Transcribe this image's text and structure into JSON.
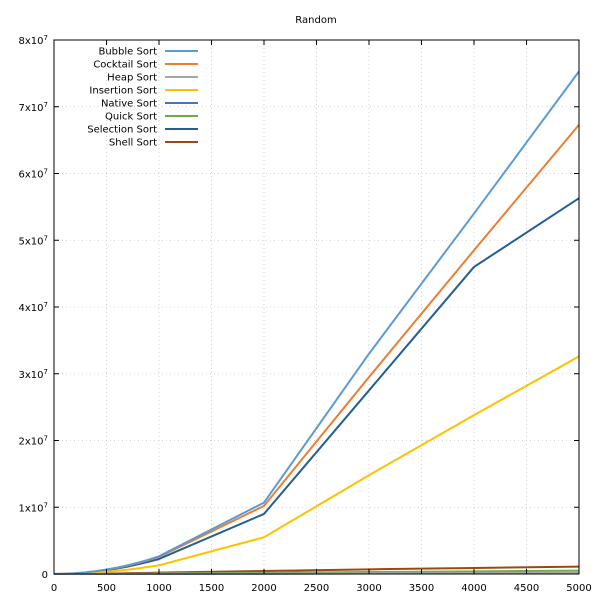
{
  "chart_data": {
    "type": "line",
    "title": "Random",
    "xlabel": "",
    "ylabel": "",
    "xlim": [
      0,
      5000
    ],
    "ylim": [
      0,
      80000000
    ],
    "grid": true,
    "legend_position": "top-left",
    "x": [
      0,
      100,
      200,
      300,
      400,
      500,
      600,
      700,
      800,
      900,
      1000,
      2000,
      3000,
      4000,
      5000
    ],
    "x_ticks": [
      0,
      500,
      1000,
      1500,
      2000,
      2500,
      3000,
      3500,
      4000,
      4500,
      5000
    ],
    "x_tick_labels": [
      "0",
      "500",
      "1000",
      "1500",
      "2000",
      "2500",
      "3000",
      "3500",
      "4000",
      "4500",
      "5000"
    ],
    "y_ticks": [
      0,
      10000000,
      20000000,
      30000000,
      40000000,
      50000000,
      60000000,
      70000000,
      80000000
    ],
    "y_tick_labels": [
      {
        "base": "0",
        "exp": ""
      },
      {
        "base": "1x10",
        "exp": "7"
      },
      {
        "base": "2x10",
        "exp": "7"
      },
      {
        "base": "3x10",
        "exp": "7"
      },
      {
        "base": "4x10",
        "exp": "7"
      },
      {
        "base": "5x10",
        "exp": "7"
      },
      {
        "base": "6x10",
        "exp": "7"
      },
      {
        "base": "7x10",
        "exp": "7"
      },
      {
        "base": "8x10",
        "exp": "7"
      }
    ],
    "series": [
      {
        "name": "Bubble Sort",
        "color": "#5b9bd5",
        "values": [
          0,
          30000,
          110000,
          250000,
          430000,
          670000,
          950000,
          1300000,
          1700000,
          2150000,
          2650000,
          10700000,
          33000000,
          54000000,
          75300000
        ]
      },
      {
        "name": "Cocktail Sort",
        "color": "#ed7d31",
        "values": [
          0,
          28000,
          105000,
          240000,
          410000,
          640000,
          920000,
          1250000,
          1640000,
          2070000,
          2550000,
          10200000,
          29500000,
          48500000,
          67300000
        ]
      },
      {
        "name": "Heap Sort",
        "color": "#a5a5a5",
        "values": [
          0,
          2000,
          5000,
          8000,
          11000,
          14000,
          17000,
          20000,
          24000,
          27000,
          30000,
          65000,
          100000,
          140000,
          180000
        ]
      },
      {
        "name": "Insertion Sort",
        "color": "#ffc000",
        "values": [
          0,
          15000,
          55000,
          120000,
          210000,
          330000,
          470000,
          640000,
          840000,
          1060000,
          1300000,
          5500000,
          14800000,
          23800000,
          32600000
        ]
      },
      {
        "name": "Native Sort",
        "color": "#4472c4",
        "values": [
          0,
          1000,
          3000,
          5000,
          7000,
          9000,
          11000,
          13000,
          15000,
          17000,
          20000,
          45000,
          70000,
          95000,
          120000
        ]
      },
      {
        "name": "Quick Sort",
        "color": "#70ad47",
        "values": [
          0,
          5000,
          12000,
          20000,
          28000,
          37000,
          46000,
          56000,
          66000,
          76000,
          86000,
          180000,
          290000,
          390000,
          500000
        ]
      },
      {
        "name": "Selection Sort",
        "color": "#255e91",
        "values": [
          0,
          25000,
          95000,
          215000,
          370000,
          570000,
          820000,
          1110000,
          1450000,
          1830000,
          2250000,
          9000000,
          27500000,
          46000000,
          56300000
        ]
      },
      {
        "name": "Shell Sort",
        "color": "#9e480e",
        "values": [
          0,
          10000,
          25000,
          42000,
          60000,
          80000,
          100000,
          125000,
          150000,
          175000,
          200000,
          450000,
          700000,
          900000,
          1100000
        ]
      }
    ]
  }
}
